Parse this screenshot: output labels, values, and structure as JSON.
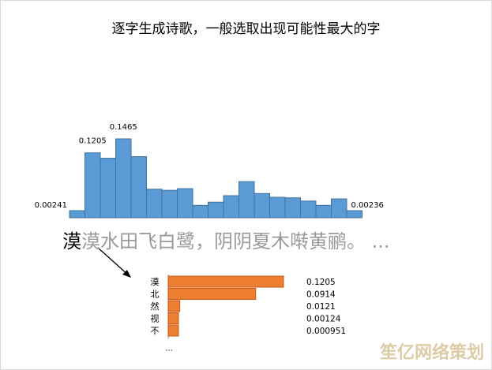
{
  "title": "逐字生成诗歌，一般选取出现可能性最大的字",
  "histogram": {
    "values": [
      0.00241,
      0.1205,
      0.1105,
      0.1465,
      0.1135,
      0.053,
      0.051,
      0.054,
      0.023,
      0.029,
      0.041,
      0.067,
      0.045,
      0.038,
      0.037,
      0.031,
      0.023,
      0.035,
      0.00236
    ],
    "labels": [
      {
        "index": 0,
        "text": "0.00241"
      },
      {
        "index": 1,
        "text": "0.1205"
      },
      {
        "index": 3,
        "text": "0.1465"
      },
      {
        "index": 18,
        "text": "0.00236"
      }
    ],
    "color": "#5b9bd5"
  },
  "poem": {
    "first_char": "漠",
    "rest": "漠水田飞白鹭，阴阴夏木啭黄鹂。 ..."
  },
  "candidates": {
    "color": "#ed7d31",
    "items": [
      {
        "char": "漠",
        "value": 0.1205,
        "label": "0.1205"
      },
      {
        "char": "北",
        "value": 0.0914,
        "label": "0.0914"
      },
      {
        "char": "然",
        "value": 0.0121,
        "label": "0.0121"
      },
      {
        "char": "视",
        "value": 0.00124,
        "label": "0.00124"
      },
      {
        "char": "不",
        "value": 0.000951,
        "label": "0.000951"
      }
    ],
    "more": "..."
  },
  "watermark": "笙亿网络策划"
}
